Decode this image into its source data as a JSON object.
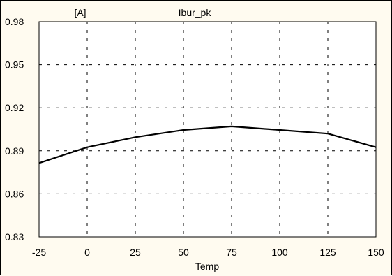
{
  "chart_data": {
    "type": "line",
    "title": "Ibur_pk",
    "ylabel": "[A]",
    "xlabel": "Temp",
    "x": [
      -25,
      0,
      25,
      50,
      75,
      100,
      125,
      150
    ],
    "series": [
      {
        "values": [
          0.8815,
          0.8925,
          0.8995,
          0.9045,
          0.907,
          0.9045,
          0.902,
          0.8925
        ]
      }
    ],
    "xlim": [
      -25,
      150
    ],
    "ylim": [
      0.83,
      0.98
    ],
    "x_ticks": [
      -25,
      0,
      25,
      50,
      75,
      100,
      125,
      150
    ],
    "y_ticks": [
      0.83,
      0.86,
      0.89,
      0.92,
      0.95,
      0.98
    ],
    "x_tick_labels": [
      "-25",
      "0",
      "25",
      "50",
      "75",
      "100",
      "125",
      "150"
    ],
    "y_tick_labels": [
      "0.83",
      "0.86",
      "0.89",
      "0.92",
      "0.95",
      "0.98"
    ],
    "grid": true,
    "grid_style": "dashed",
    "line_color": "#000000",
    "background_color": "#fffbf0",
    "plot_background_color": "#ffffff"
  }
}
